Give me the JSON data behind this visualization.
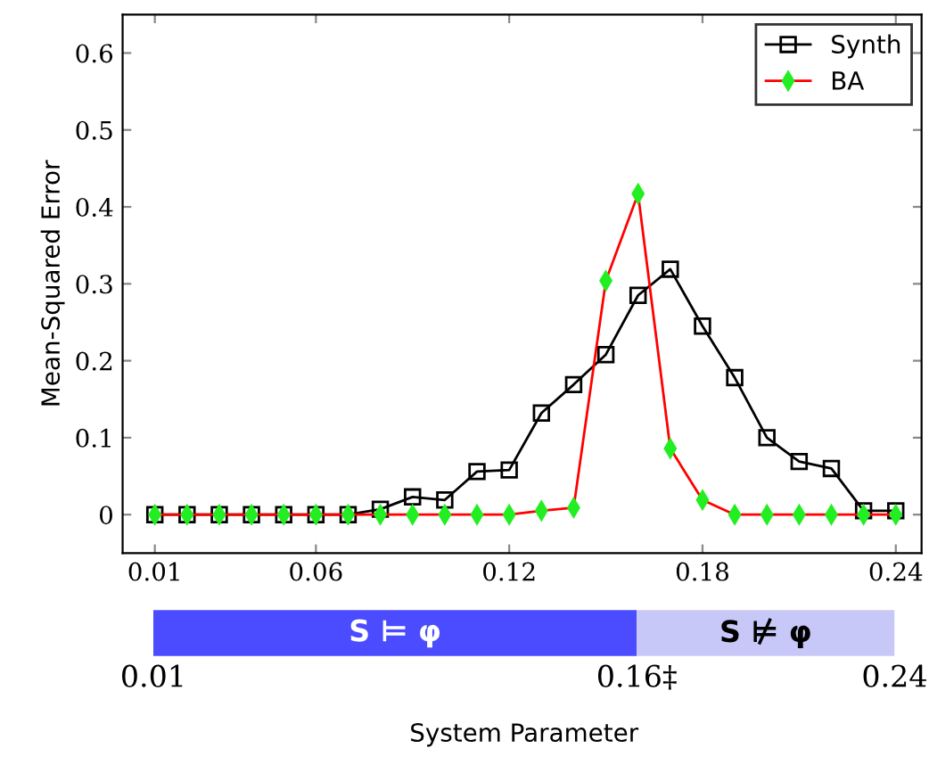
{
  "chart_data": [
    {
      "type": "line",
      "ylabel": "Mean-Squared Error",
      "x": [
        0.01,
        0.02,
        0.03,
        0.04,
        0.05,
        0.06,
        0.07,
        0.08,
        0.09,
        0.1,
        0.11,
        0.12,
        0.13,
        0.14,
        0.15,
        0.16,
        0.17,
        0.18,
        0.19,
        0.2,
        0.21,
        0.22,
        0.23,
        0.24
      ],
      "series": [
        {
          "name": "Synth",
          "color": "#000000",
          "marker": "square",
          "values": [
            0,
            0,
            0,
            0,
            0,
            0,
            0,
            0.007,
            0.023,
            0.019,
            0.056,
            0.058,
            0.132,
            0.169,
            0.208,
            0.285,
            0.319,
            0.245,
            0.178,
            0.1,
            0.069,
            0.06,
            0.005,
            0.005
          ]
        },
        {
          "name": "BA",
          "color": "#ff0000",
          "marker": "diamond",
          "values": [
            0,
            0,
            0,
            0,
            0,
            0,
            0,
            0,
            0,
            0,
            0,
            0,
            0.005,
            0.009,
            0.304,
            0.417,
            0.086,
            0.019,
            0,
            0,
            0,
            0,
            0,
            0
          ]
        }
      ],
      "xlim": [
        0.0,
        0.248
      ],
      "ylim": [
        -0.05,
        0.65
      ],
      "xticks": [
        0.01,
        0.06,
        0.12,
        0.18,
        0.24
      ],
      "yticks": [
        0,
        0.1,
        0.2,
        0.3,
        0.4,
        0.5,
        0.6
      ],
      "grid": false,
      "legend": "top right"
    },
    {
      "type": "bar",
      "orientation": "horizontal",
      "xlabel": "System Parameter",
      "categories": [
        null
      ],
      "series": [
        {
          "name": "S ⊨ φ",
          "color": "#4b4bff",
          "base": [
            0.01
          ],
          "values": [
            0.15
          ]
        },
        {
          "name": "S ⊭ φ",
          "color": "#c8c8f8",
          "base": [
            0.16
          ],
          "values": [
            0.08
          ]
        }
      ],
      "xlim": [
        0.01,
        0.24
      ],
      "xticks": [
        0.01,
        {
          "value": 0.16,
          "label": "0.16‡"
        },
        0.24
      ],
      "tick_labels": "x"
    }
  ]
}
